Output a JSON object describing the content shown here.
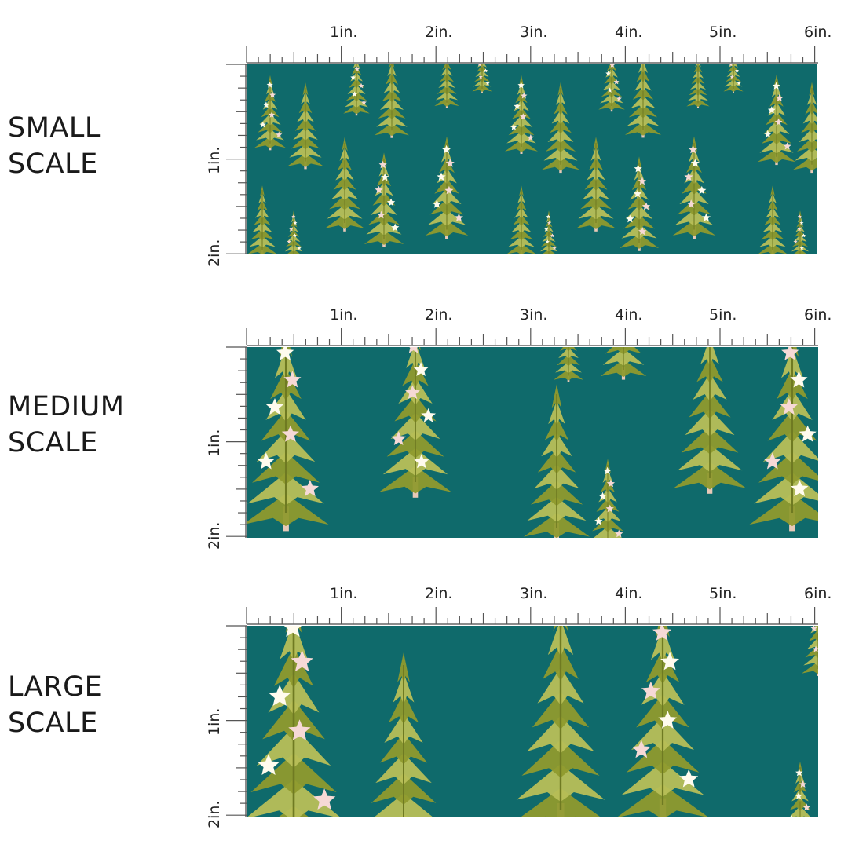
{
  "colors": {
    "fabric": "#0f6a6b",
    "tree_dark": "#8f9a2e",
    "tree_light": "#b8bf58",
    "trunk": "#e8c9b8",
    "star_white": "#fffbee",
    "star_pink": "#f6d9d6"
  },
  "ruler": {
    "h_labels": [
      "1in.",
      "2in.",
      "3in.",
      "4in.",
      "5in.",
      "6in."
    ],
    "v_labels": [
      "1in.",
      "2in."
    ]
  },
  "sections": [
    {
      "id": "small",
      "label_line1": "SMALL",
      "label_line2": "SCALE"
    },
    {
      "id": "medium",
      "label_line1": "MEDIUM",
      "label_line2": "SCALE"
    },
    {
      "id": "large",
      "label_line1": "LARGE",
      "label_line2": "SCALE"
    }
  ]
}
